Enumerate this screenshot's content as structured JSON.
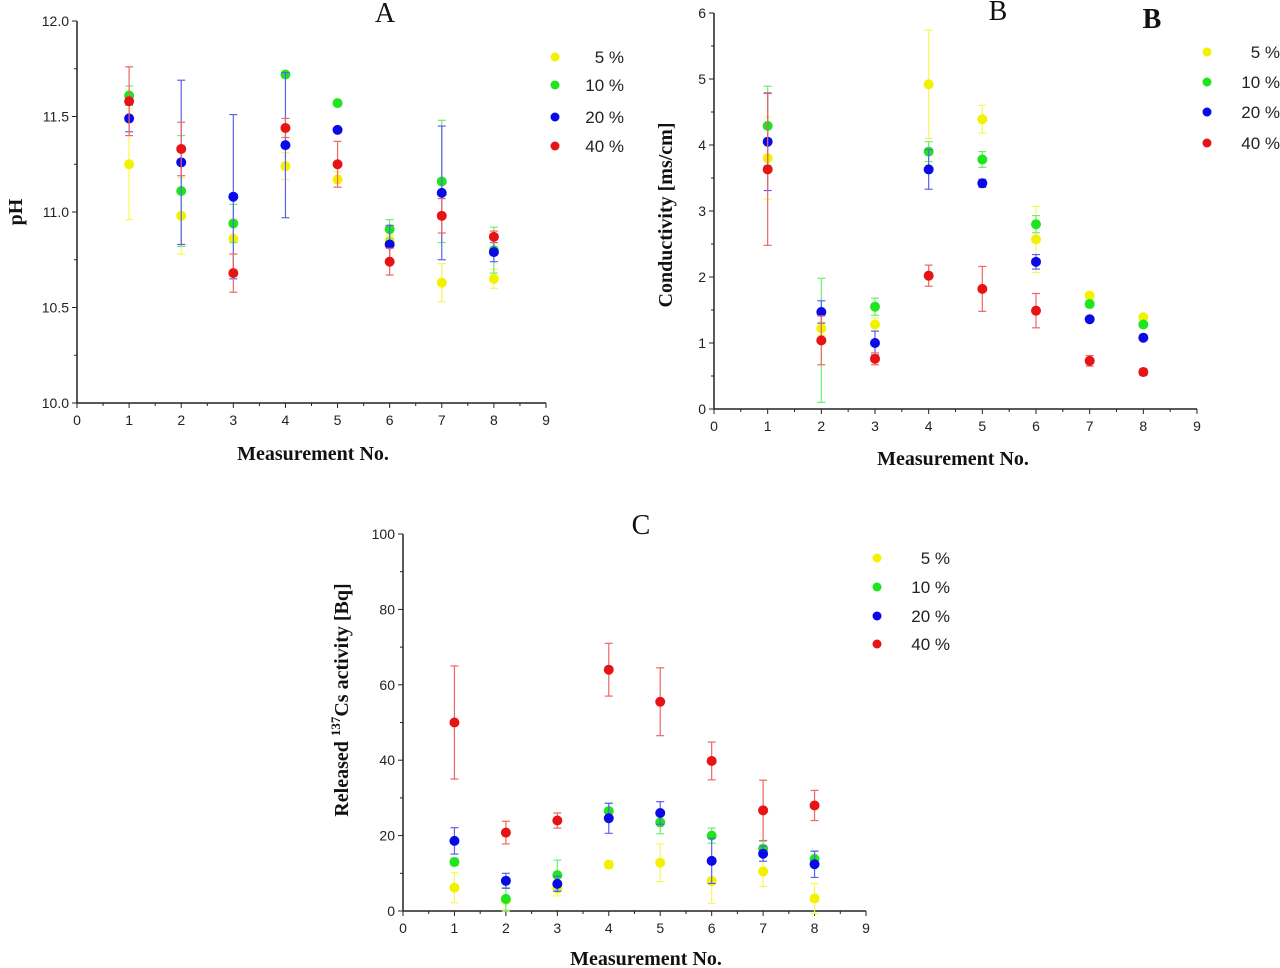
{
  "colors": {
    "5 %": "#f2f200",
    "10 %": "#1ee61e",
    "20 %": "#0a0ae6",
    "40 %": "#e61414"
  },
  "chart_data": [
    {
      "type": "scatter",
      "title": "A",
      "xlabel": "Measurement No.",
      "ylabel": "pH",
      "xlim": [
        0,
        9
      ],
      "ylim": [
        10.0,
        12.0
      ],
      "xticks": [
        "0",
        "1",
        "2",
        "3",
        "4",
        "5",
        "6",
        "7",
        "8",
        "9"
      ],
      "yticks": [
        "10.0",
        "10.5",
        "11.0",
        "11.5",
        "12.0"
      ],
      "grid": false,
      "legend": "right",
      "x": [
        1,
        2,
        3,
        4,
        5,
        6,
        7,
        8
      ],
      "series": [
        {
          "name": "5 %",
          "values": [
            11.25,
            10.98,
            10.86,
            11.24,
            11.17,
            10.85,
            10.63,
            10.65
          ],
          "err": [
            0.29,
            0.2,
            0.08,
            0.07,
            0.04,
            0.03,
            0.1,
            0.05
          ]
        },
        {
          "name": "10 %",
          "values": [
            11.61,
            11.11,
            10.94,
            11.72,
            11.57,
            10.91,
            11.16,
            10.8
          ],
          "err": [
            0.05,
            0.29,
            0.1,
            0.01,
            0.01,
            0.05,
            0.32,
            0.12
          ]
        },
        {
          "name": "20 %",
          "values": [
            11.49,
            11.26,
            11.08,
            11.35,
            11.43,
            10.83,
            11.1,
            10.79
          ],
          "err": [
            0.07,
            0.43,
            0.43,
            0.38,
            0.01,
            0.1,
            0.35,
            0.05
          ]
        },
        {
          "name": "40 %",
          "values": [
            11.58,
            11.33,
            10.68,
            11.44,
            11.25,
            10.74,
            10.98,
            10.87
          ],
          "err": [
            0.18,
            0.14,
            0.1,
            0.05,
            0.12,
            0.07,
            0.09,
            0.03
          ]
        }
      ]
    },
    {
      "type": "scatter",
      "title": "B",
      "panel_label": "B",
      "xlabel": "Measurement No.",
      "ylabel": "Conductivity [ms/cm]",
      "xlim": [
        0,
        9
      ],
      "ylim": [
        0,
        6
      ],
      "xticks": [
        "0",
        "1",
        "2",
        "3",
        "4",
        "5",
        "6",
        "7",
        "8",
        "9"
      ],
      "yticks": [
        "0",
        "1",
        "2",
        "3",
        "4",
        "5",
        "6"
      ],
      "grid": false,
      "legend": "right",
      "x": [
        1,
        2,
        3,
        4,
        5,
        6,
        7,
        8
      ],
      "series": [
        {
          "name": "5 %",
          "values": [
            3.8,
            1.22,
            1.28,
            4.92,
            4.39,
            2.57,
            1.72,
            1.39
          ],
          "err": [
            0.62,
            0.1,
            0.1,
            0.82,
            0.21,
            0.5,
            0.05,
            0.04
          ]
        },
        {
          "name": "10 %",
          "values": [
            4.29,
            1.04,
            1.55,
            3.9,
            3.78,
            2.8,
            1.59,
            1.28
          ],
          "err": [
            0.6,
            0.94,
            0.13,
            0.15,
            0.12,
            0.13,
            0.05,
            0.04
          ]
        },
        {
          "name": "20 %",
          "values": [
            4.05,
            1.47,
            1.0,
            3.63,
            3.42,
            2.23,
            1.36,
            1.08
          ],
          "err": [
            0.74,
            0.17,
            0.18,
            0.3,
            0.06,
            0.11,
            0.04,
            0.03
          ]
        },
        {
          "name": "40 %",
          "values": [
            3.63,
            1.04,
            0.76,
            2.02,
            1.82,
            1.49,
            0.73,
            0.56
          ],
          "err": [
            1.15,
            0.37,
            0.09,
            0.16,
            0.34,
            0.26,
            0.08,
            0.05
          ]
        }
      ]
    },
    {
      "type": "scatter",
      "title": "C",
      "xlabel": "Measurement No.",
      "ylabel_prefix": "Released ",
      "ylabel_sup": "137",
      "ylabel_suffix": "Cs activity [Bq]",
      "xlim": [
        0,
        9
      ],
      "ylim": [
        0,
        100
      ],
      "xticks": [
        "0",
        "1",
        "2",
        "3",
        "4",
        "5",
        "6",
        "7",
        "8",
        "9"
      ],
      "yticks": [
        "0",
        "20",
        "40",
        "60",
        "80",
        "100"
      ],
      "grid": false,
      "legend": "right",
      "x": [
        1,
        2,
        3,
        4,
        5,
        6,
        7,
        8
      ],
      "series": [
        {
          "name": "5 %",
          "values": [
            6.2,
            3.0,
            6.0,
            12.3,
            12.8,
            8.0,
            10.5,
            3.3
          ],
          "err": [
            4,
            3,
            2,
            1,
            5,
            6,
            4,
            4
          ]
        },
        {
          "name": "10 %",
          "values": [
            13.0,
            3.2,
            9.5,
            26.5,
            23.5,
            20.0,
            16.5,
            13.8
          ],
          "err": [
            1,
            3,
            4,
            2,
            3,
            2,
            2,
            2
          ]
        },
        {
          "name": "20 %",
          "values": [
            18.6,
            8.0,
            7.2,
            24.6,
            26.0,
            13.3,
            15.2,
            12.4
          ],
          "err": [
            3.5,
            2,
            2,
            4,
            3,
            6,
            2,
            3.5
          ]
        },
        {
          "name": "40 %",
          "values": [
            50.0,
            20.8,
            24.0,
            64.0,
            55.5,
            39.8,
            26.7,
            28.0
          ],
          "err": [
            15,
            3,
            2,
            7,
            9,
            5,
            8,
            4
          ]
        }
      ]
    }
  ]
}
